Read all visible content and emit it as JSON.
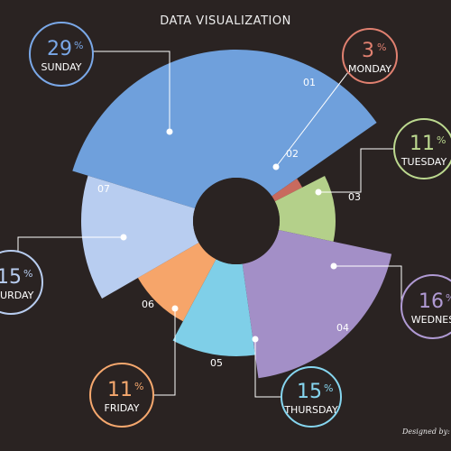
{
  "page": {
    "title": "DATA VISUALIZATION",
    "credit": "Designed by: E"
  },
  "chart_data": {
    "type": "pie",
    "title": "DATA VISUALIZATION",
    "categories": [
      "SUNDAY",
      "MONDAY",
      "TUESDAY",
      "WEDNESDAY",
      "THURSDAY",
      "FRIDAY",
      "SATURDAY"
    ],
    "values": [
      29,
      3,
      11,
      16,
      15,
      11,
      15
    ],
    "unit": "%",
    "slice_numbers": [
      "01",
      "02",
      "03",
      "04",
      "05",
      "06",
      "07"
    ],
    "slice_colors": [
      "#6fa0dc",
      "#c86a5e",
      "#b4d08a",
      "#a38fc7",
      "#7fcfe8",
      "#f6a56a",
      "#b8cdf0"
    ],
    "label_colors": [
      "#7aa8e8",
      "#e08070",
      "#bcd98f",
      "#b09ad4",
      "#86d6f0",
      "#f6a86e",
      "#b8cdf0"
    ],
    "display_labels": [
      "SUNDAY",
      "MONDAY",
      "TUESDAY",
      "WEDNES",
      "THURSDAY",
      "FRIDAY",
      "ATURDAY"
    ],
    "style": "rose, donut with hole"
  }
}
